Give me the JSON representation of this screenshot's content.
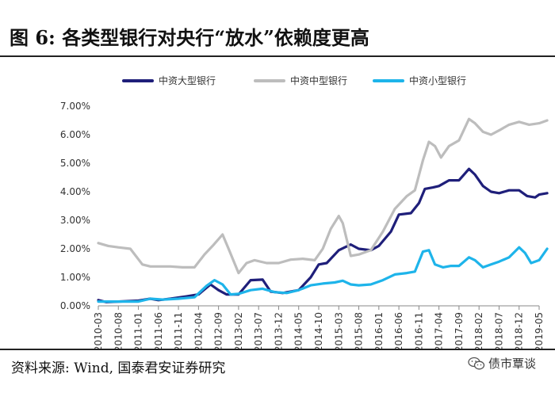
{
  "figure": {
    "title": "图 6:  各类型银行对央行“放水”依赖度更高",
    "source": "资料来源:  Wind, 国泰君安证券研究",
    "watermark": "债市覃谈",
    "watermark_icon": "wechat-icon"
  },
  "chart_data": {
    "type": "line",
    "title": "图 6: 各类型银行对央行“放水”依赖度更高",
    "xlabel": "",
    "ylabel": "",
    "ylim": [
      0,
      7
    ],
    "y_ticks": [
      "7.00%",
      "6.00%",
      "5.00%",
      "4.00%",
      "3.00%",
      "2.00%",
      "1.00%",
      "0.00%"
    ],
    "y_tick_values": [
      7,
      6,
      5,
      4,
      3,
      2,
      1,
      0
    ],
    "x_tick_labels": [
      "2010-03",
      "2010-08",
      "2011-01",
      "2011-06",
      "2011-11",
      "2012-04",
      "2012-09",
      "2013-02",
      "2013-07",
      "2013-12",
      "2014-05",
      "2014-10",
      "2015-03",
      "2015-08",
      "2016-01",
      "2016-06",
      "2016-11",
      "2017-04",
      "2017-09",
      "2018-02",
      "2018-07",
      "2018-12",
      "2019-05"
    ],
    "legend_position": "top",
    "series": [
      {
        "name": "中资大型银行",
        "color": "#1f1f7a",
        "points": [
          [
            0,
            0.2
          ],
          [
            0.4,
            0.13
          ],
          [
            1,
            0.15
          ],
          [
            2,
            0.18
          ],
          [
            2.6,
            0.25
          ],
          [
            3,
            0.2
          ],
          [
            3.6,
            0.25
          ],
          [
            4.4,
            0.33
          ],
          [
            5,
            0.4
          ],
          [
            5.6,
            0.75
          ],
          [
            6,
            0.55
          ],
          [
            6.4,
            0.4
          ],
          [
            7,
            0.4
          ],
          [
            7.6,
            0.9
          ],
          [
            8.2,
            0.92
          ],
          [
            8.6,
            0.5
          ],
          [
            9.2,
            0.45
          ],
          [
            10,
            0.55
          ],
          [
            10.6,
            1.0
          ],
          [
            11,
            1.45
          ],
          [
            11.4,
            1.5
          ],
          [
            12,
            1.95
          ],
          [
            12.6,
            2.15
          ],
          [
            13,
            2.0
          ],
          [
            13.6,
            1.95
          ],
          [
            14,
            2.1
          ],
          [
            14.6,
            2.6
          ],
          [
            15,
            3.2
          ],
          [
            15.6,
            3.25
          ],
          [
            16,
            3.6
          ],
          [
            16.3,
            4.1
          ],
          [
            16.7,
            4.15
          ],
          [
            17,
            4.2
          ],
          [
            17.5,
            4.4
          ],
          [
            18,
            4.4
          ],
          [
            18.5,
            4.8
          ],
          [
            18.8,
            4.6
          ],
          [
            19.2,
            4.2
          ],
          [
            19.6,
            4.0
          ],
          [
            20,
            3.95
          ],
          [
            20.5,
            4.05
          ],
          [
            21,
            4.05
          ],
          [
            21.4,
            3.85
          ],
          [
            21.8,
            3.8
          ],
          [
            22,
            3.9
          ],
          [
            22.4,
            3.95
          ]
        ]
      },
      {
        "name": "中资中型银行",
        "color": "#bdbdbd",
        "points": [
          [
            0,
            2.2
          ],
          [
            0.5,
            2.1
          ],
          [
            1,
            2.05
          ],
          [
            1.6,
            2.0
          ],
          [
            2.2,
            1.45
          ],
          [
            2.6,
            1.38
          ],
          [
            3.2,
            1.38
          ],
          [
            3.6,
            1.38
          ],
          [
            4.2,
            1.35
          ],
          [
            4.8,
            1.35
          ],
          [
            5.3,
            1.8
          ],
          [
            5.7,
            2.1
          ],
          [
            6.2,
            2.5
          ],
          [
            6.5,
            2.0
          ],
          [
            7,
            1.15
          ],
          [
            7.4,
            1.5
          ],
          [
            7.8,
            1.6
          ],
          [
            8.4,
            1.5
          ],
          [
            9,
            1.5
          ],
          [
            9.6,
            1.62
          ],
          [
            10.2,
            1.65
          ],
          [
            10.8,
            1.6
          ],
          [
            11.2,
            2.0
          ],
          [
            11.6,
            2.7
          ],
          [
            12,
            3.15
          ],
          [
            12.2,
            2.9
          ],
          [
            12.6,
            1.75
          ],
          [
            13,
            1.8
          ],
          [
            13.6,
            1.95
          ],
          [
            14.2,
            2.6
          ],
          [
            14.8,
            3.4
          ],
          [
            15.4,
            3.85
          ],
          [
            15.8,
            4.05
          ],
          [
            16.2,
            5.1
          ],
          [
            16.5,
            5.75
          ],
          [
            16.8,
            5.6
          ],
          [
            17.1,
            5.2
          ],
          [
            17.5,
            5.6
          ],
          [
            18,
            5.8
          ],
          [
            18.5,
            6.55
          ],
          [
            18.8,
            6.4
          ],
          [
            19.2,
            6.1
          ],
          [
            19.6,
            6.0
          ],
          [
            20,
            6.15
          ],
          [
            20.5,
            6.35
          ],
          [
            21,
            6.45
          ],
          [
            21.5,
            6.35
          ],
          [
            22,
            6.4
          ],
          [
            22.4,
            6.5
          ]
        ]
      },
      {
        "name": "中资小型银行",
        "color": "#1eb4ea",
        "points": [
          [
            0,
            0.15
          ],
          [
            1,
            0.15
          ],
          [
            2,
            0.15
          ],
          [
            2.6,
            0.25
          ],
          [
            3.2,
            0.22
          ],
          [
            4,
            0.25
          ],
          [
            4.8,
            0.3
          ],
          [
            5.4,
            0.7
          ],
          [
            5.8,
            0.9
          ],
          [
            6.2,
            0.75
          ],
          [
            6.6,
            0.4
          ],
          [
            7,
            0.42
          ],
          [
            7.6,
            0.55
          ],
          [
            8.2,
            0.6
          ],
          [
            8.8,
            0.48
          ],
          [
            9.4,
            0.45
          ],
          [
            10,
            0.55
          ],
          [
            10.6,
            0.72
          ],
          [
            11.2,
            0.78
          ],
          [
            11.8,
            0.82
          ],
          [
            12.2,
            0.88
          ],
          [
            12.6,
            0.75
          ],
          [
            13,
            0.72
          ],
          [
            13.6,
            0.75
          ],
          [
            14.2,
            0.9
          ],
          [
            14.8,
            1.1
          ],
          [
            15.4,
            1.15
          ],
          [
            15.8,
            1.2
          ],
          [
            16.2,
            1.9
          ],
          [
            16.5,
            1.95
          ],
          [
            16.8,
            1.45
          ],
          [
            17.2,
            1.35
          ],
          [
            17.6,
            1.4
          ],
          [
            18,
            1.4
          ],
          [
            18.5,
            1.7
          ],
          [
            18.8,
            1.6
          ],
          [
            19.2,
            1.35
          ],
          [
            19.6,
            1.45
          ],
          [
            20,
            1.55
          ],
          [
            20.5,
            1.7
          ],
          [
            21,
            2.05
          ],
          [
            21.3,
            1.85
          ],
          [
            21.6,
            1.5
          ],
          [
            22,
            1.6
          ],
          [
            22.4,
            2.0
          ]
        ]
      }
    ]
  }
}
